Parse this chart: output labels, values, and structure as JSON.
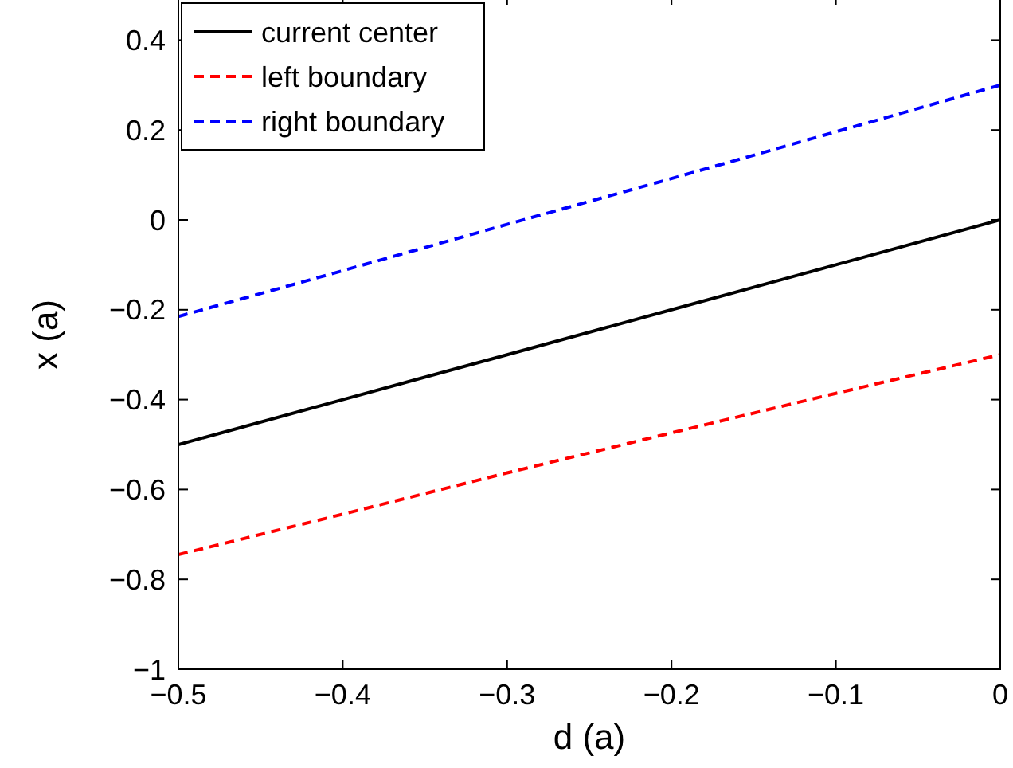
{
  "chart_data": {
    "type": "line",
    "xlabel": "d (a)",
    "ylabel": "x (a)",
    "x": [
      -0.5,
      -0.4,
      -0.3,
      -0.2,
      -0.1,
      0
    ],
    "series": [
      {
        "name": "current center",
        "color": "#000000",
        "line_style": "solid",
        "values": [
          -0.5,
          -0.4,
          -0.3,
          -0.2,
          -0.1,
          0
        ]
      },
      {
        "name": "left boundary",
        "color": "#ff0000",
        "line_style": "dashed",
        "values": [
          -0.745,
          -0.655,
          -0.563,
          -0.474,
          -0.386,
          -0.3
        ]
      },
      {
        "name": "right boundary",
        "color": "#0000ff",
        "line_style": "dashed",
        "values": [
          -0.215,
          -0.113,
          -0.01,
          0.092,
          0.196,
          0.3
        ]
      }
    ],
    "xlim": [
      -0.5,
      0
    ],
    "xticks": [
      {
        "value": -0.5,
        "label": "−0.5"
      },
      {
        "value": -0.4,
        "label": "−0.4"
      },
      {
        "value": -0.3,
        "label": "−0.3"
      },
      {
        "value": -0.2,
        "label": "−0.2"
      },
      {
        "value": -0.1,
        "label": "−0.1"
      },
      0
    ],
    "ylim": [
      -1,
      0.5
    ],
    "yticks": [
      {
        "value": -1,
        "label": "−1"
      },
      {
        "value": -0.8,
        "label": "−0.8"
      },
      {
        "value": -0.6,
        "label": "−0.6"
      },
      {
        "value": -0.4,
        "label": "−0.4"
      },
      {
        "value": -0.2,
        "label": "−0.2"
      },
      0,
      0.2,
      0.4
    ],
    "grid": false,
    "legend": "top left"
  }
}
